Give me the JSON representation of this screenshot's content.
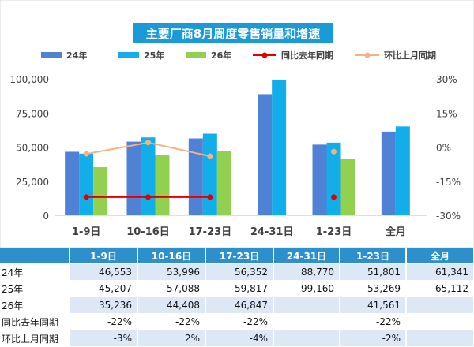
{
  "chart_data": {
    "type": "bar",
    "title": "主要厂商8月周度零售销量和增速",
    "categories": [
      "1-9日",
      "10-16日",
      "17-23日",
      "24-31日",
      "1-23日",
      "全月"
    ],
    "series": [
      {
        "name": "24年",
        "kind": "bar",
        "color": "#4f81d4",
        "values": [
          46553,
          53996,
          56352,
          88770,
          51801,
          61341
        ]
      },
      {
        "name": "25年",
        "kind": "bar",
        "color": "#11aee9",
        "values": [
          45207,
          57088,
          59817,
          99160,
          53269,
          65112
        ]
      },
      {
        "name": "26年",
        "kind": "bar",
        "color": "#92d050",
        "values": [
          35236,
          44408,
          46847,
          null,
          41561,
          null
        ]
      },
      {
        "name": "同比去年同期",
        "kind": "line",
        "axis": "right",
        "color": "#e00000",
        "values": [
          -22,
          -22,
          -22,
          null,
          -22,
          null
        ]
      },
      {
        "name": "环比上月同期",
        "kind": "line",
        "axis": "right",
        "color": "#f4b183",
        "values": [
          -3,
          2,
          -4,
          null,
          -2,
          null
        ]
      }
    ],
    "ylim": [
      0,
      100000
    ],
    "yticks": [
      "0",
      "25,000",
      "50,000",
      "75,000",
      "100,000"
    ],
    "y2lim": [
      -30,
      30
    ],
    "y2ticks": [
      "-30%",
      "-15%",
      "0%",
      "15%",
      "30%"
    ],
    "legend": "top",
    "grid": false
  },
  "table": {
    "headers": [
      "1-9日",
      "10-16日",
      "17-23日",
      "24-31日",
      "1-23日",
      "全月"
    ],
    "rows": [
      {
        "label": "24年",
        "cells": [
          "46,553",
          "53,996",
          "56,352",
          "88,770",
          "51,801",
          "61,341"
        ]
      },
      {
        "label": "25年",
        "cells": [
          "45,207",
          "57,088",
          "59,817",
          "99,160",
          "53,269",
          "65,112"
        ]
      },
      {
        "label": "26年",
        "cells": [
          "35,236",
          "44,408",
          "46,847",
          "",
          "41,561",
          ""
        ]
      },
      {
        "label": "同比去年同期",
        "cells": [
          "-22%",
          "-22%",
          "-22%",
          "",
          "-22%",
          ""
        ]
      },
      {
        "label": "环比上月同期",
        "cells": [
          "-3%",
          "2%",
          "-4%",
          "",
          "-2%",
          ""
        ]
      }
    ]
  }
}
